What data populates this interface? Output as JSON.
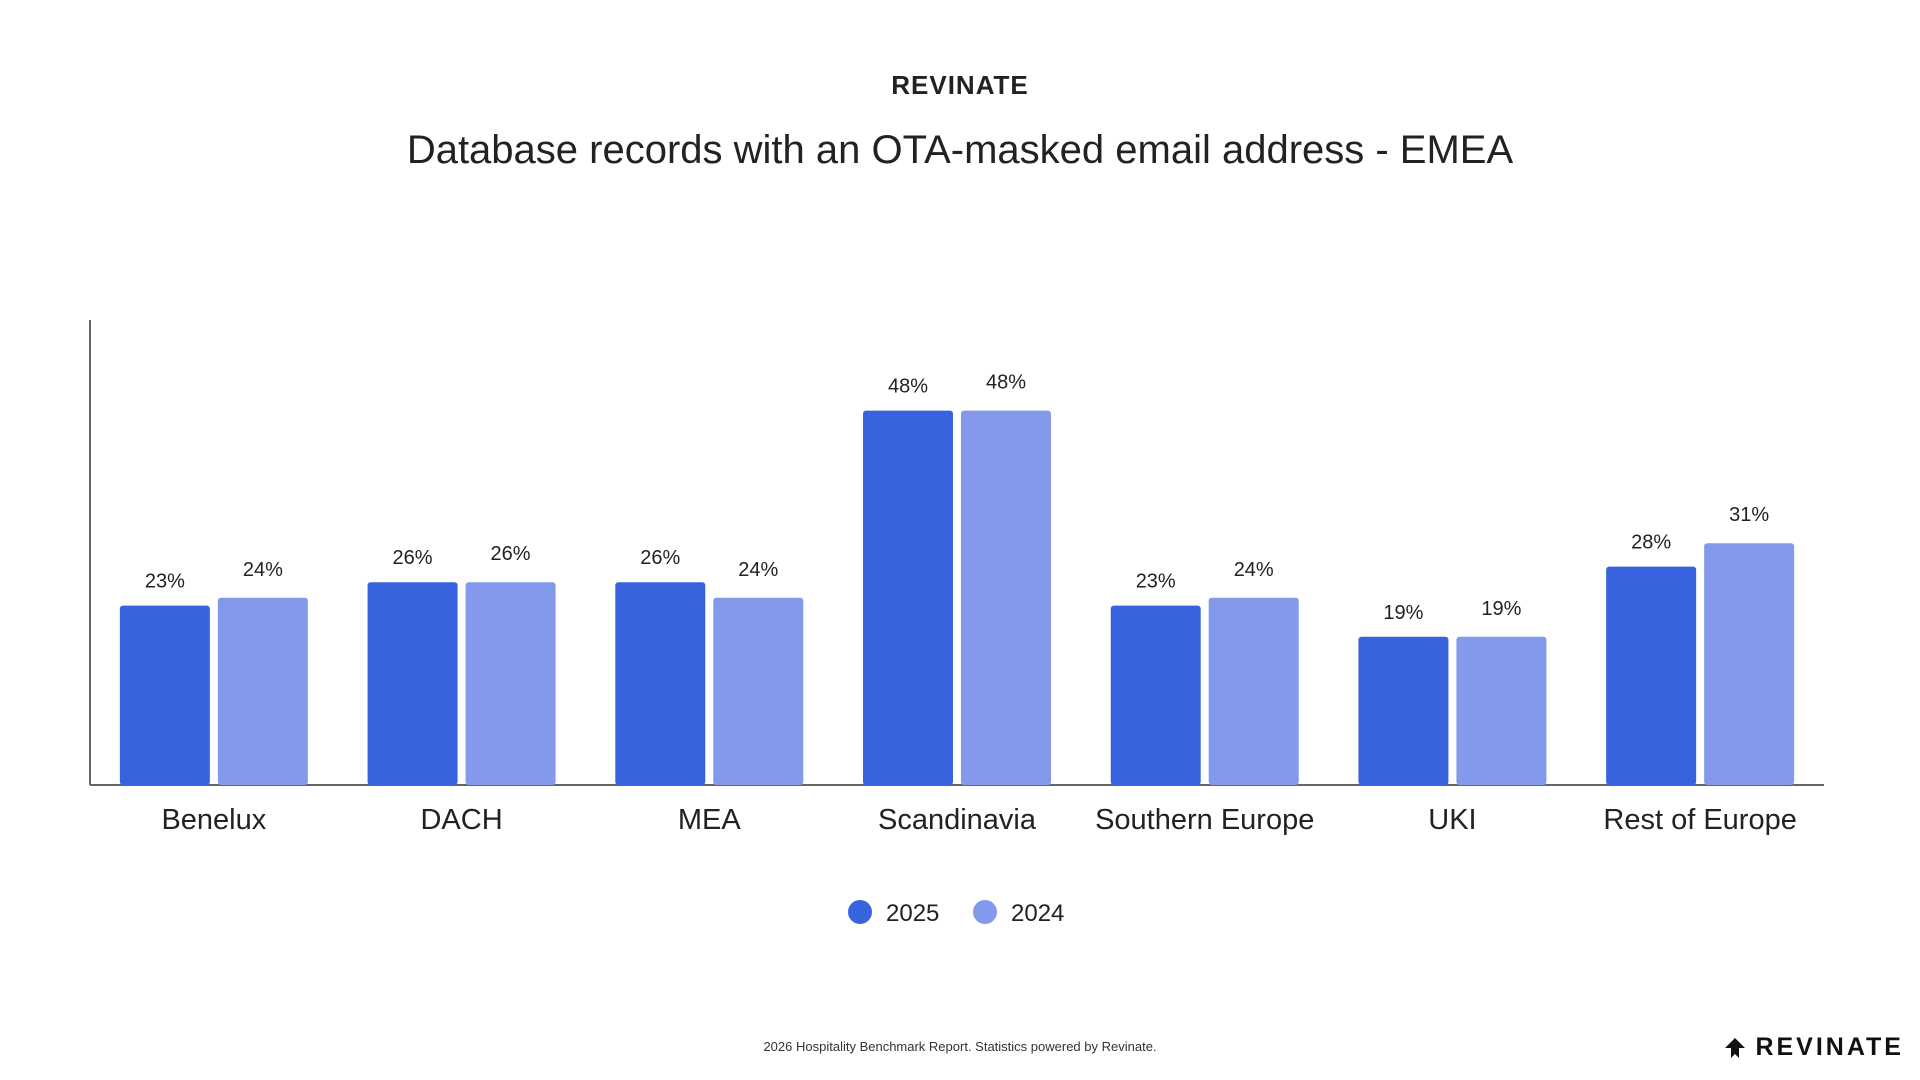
{
  "header": {
    "brand": "REVINATE",
    "title": "Database records with an OTA-masked email address - EMEA"
  },
  "chart_data": {
    "type": "bar",
    "title": "Database records with an OTA-masked email address - EMEA",
    "categories": [
      "Benelux",
      "DACH",
      "MEA",
      "Scandinavia",
      "Southern Europe",
      "UKI",
      "Rest of Europe"
    ],
    "series": [
      {
        "name": "2025",
        "color": "#3763DE",
        "values": [
          23,
          26,
          26,
          48,
          23,
          19,
          28
        ],
        "labels": [
          "23%",
          "26%",
          "26%",
          "48%",
          "23%",
          "19%",
          "28%"
        ]
      },
      {
        "name": "2024",
        "color": "#8299EC",
        "values": [
          24,
          26,
          24,
          48,
          24,
          19,
          31
        ],
        "labels": [
          "24%",
          "26%",
          "24%",
          "48%",
          "24%",
          "19%",
          "31%"
        ]
      }
    ],
    "ylim": [
      0,
      60
    ],
    "xlabel": "",
    "ylabel": "",
    "grid": false,
    "legend": "bottom-center"
  },
  "footer": {
    "text": "2026 Hospitality Benchmark Report. Statistics powered by Revinate.",
    "logo_text": "REVINATE"
  }
}
